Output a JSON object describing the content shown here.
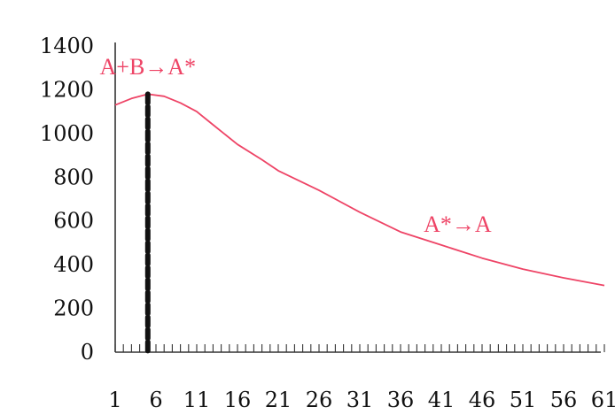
{
  "chart_data": {
    "type": "line",
    "title": "",
    "xlabel": "",
    "ylabel": "",
    "xlim": [
      1,
      61
    ],
    "ylim": [
      0,
      1400
    ],
    "x_ticks": [
      "1",
      "6",
      "11",
      "16",
      "21",
      "26",
      "31",
      "36",
      "41",
      "46",
      "51",
      "56",
      "61"
    ],
    "y_ticks": [
      "0",
      "200",
      "400",
      "600",
      "800",
      "1000",
      "1200",
      "1400"
    ],
    "grid": false,
    "legend": "none",
    "series": [
      {
        "color": "#ee4466",
        "x": [
          1,
          3,
          5,
          7,
          9,
          11,
          13,
          16,
          19,
          21,
          26,
          31,
          36,
          41,
          46,
          51,
          56,
          61
        ],
        "values": [
          1130,
          1160,
          1180,
          1170,
          1140,
          1100,
          1040,
          950,
          880,
          830,
          740,
          640,
          550,
          490,
          430,
          380,
          340,
          305
        ]
      }
    ],
    "vertical_marker": {
      "x": 5,
      "color": "#111111",
      "style": "dashed"
    },
    "annotations": [
      {
        "text": "A+B→A*",
        "x": 5,
        "y": 1270,
        "color": "#ee4466"
      },
      {
        "text": "A*→A",
        "x": 43,
        "y": 550,
        "color": "#ee4466"
      }
    ]
  }
}
